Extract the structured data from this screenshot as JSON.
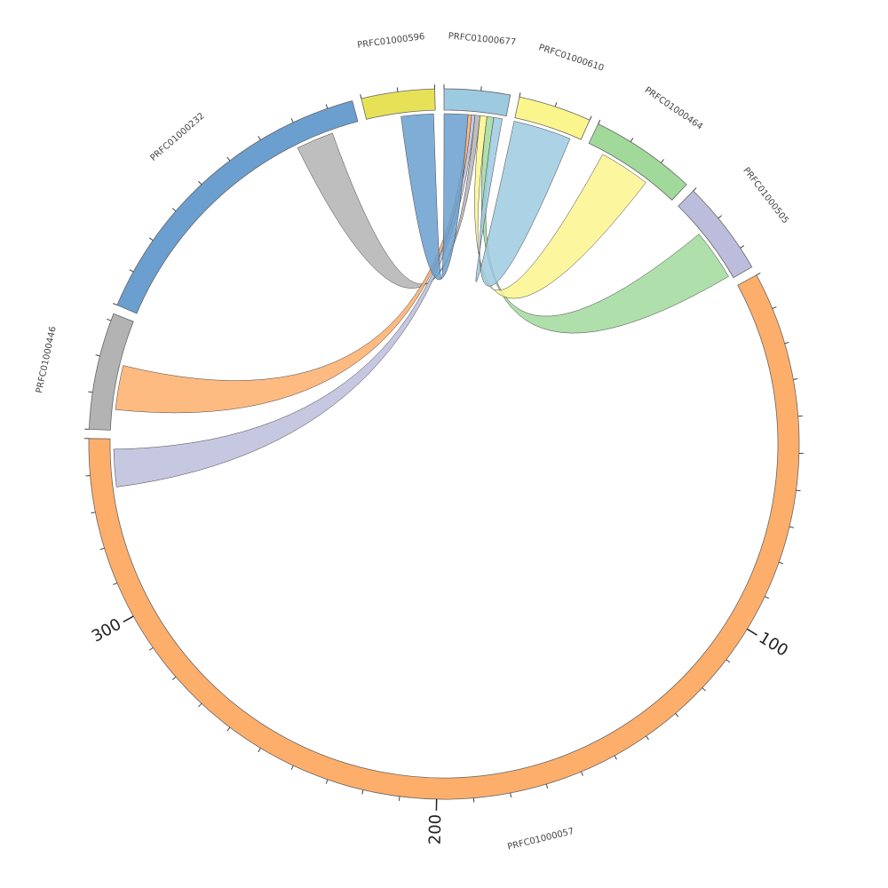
{
  "chart_data": {
    "type": "chord",
    "segments": [
      {
        "name": "PRFC01000677",
        "length": 18,
        "color": "#9ecae1"
      },
      {
        "name": "PRFC01000610",
        "length": 20,
        "color": "#fbf58d"
      },
      {
        "name": "PRFC01000464",
        "length": 29,
        "color": "#a1d99b"
      },
      {
        "name": "PRFC01000505",
        "length": 26,
        "color": "#bcbddc"
      },
      {
        "name": "PRFC01000057",
        "length": 350,
        "color": "#fdae6b",
        "tick_labels": [
          100,
          200,
          300
        ]
      },
      {
        "name": "PRFC01000446",
        "length": 32,
        "color": "#b3b3b3"
      },
      {
        "name": "PRFC01000232",
        "length": 87,
        "color": "#6a9fcf"
      },
      {
        "name": "PRFC01000596",
        "length": 20,
        "color": "#e6e157"
      }
    ],
    "tick_step": 10,
    "links": [
      {
        "source": "PRFC01000232",
        "source_range": [
          68,
          79
        ],
        "target": "PRFC01000677",
        "target_range": [
          9,
          10.5
        ],
        "color": "#b3b3b3"
      },
      {
        "source": "PRFC01000446",
        "source_range": [
          6,
          19
        ],
        "target": "PRFC01000677",
        "target_range": [
          7,
          8
        ],
        "color": "#fdae6b"
      },
      {
        "source": "PRFC01000057",
        "source_range": [
          336,
          347
        ],
        "target": "PRFC01000677",
        "target_range": [
          8,
          9
        ],
        "color": "#bcbddc"
      },
      {
        "source": "PRFC01000505",
        "source_range": [
          10,
          25
        ],
        "target": "PRFC01000677",
        "target_range": [
          12.5,
          14.5
        ],
        "color": "#a1d99b"
      },
      {
        "source": "PRFC01000464",
        "source_range": [
          5,
          20
        ],
        "target": "PRFC01000677",
        "target_range": [
          10.5,
          12.5
        ],
        "color": "#fbf58d"
      },
      {
        "source": "PRFC01000610",
        "source_range": [
          0,
          17
        ],
        "target": "PRFC01000677",
        "target_range": [
          14.5,
          17
        ],
        "color": "#9ecae1"
      },
      {
        "source": "PRFC01000596",
        "source_range": [
          10,
          19.5
        ],
        "target": "PRFC01000677",
        "target_range": [
          0,
          7
        ],
        "color": "#6a9fcf"
      }
    ]
  }
}
